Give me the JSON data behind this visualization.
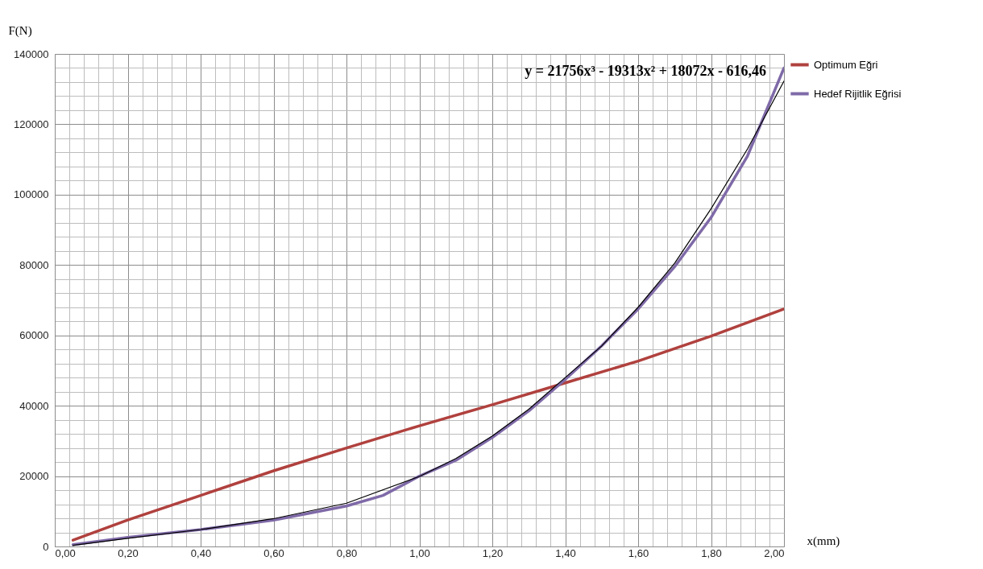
{
  "chart_data": {
    "type": "line",
    "xlabel": "x(mm)",
    "ylabel": "F(N)",
    "annotations": [
      "y = 21756x³ - 19313x² + 18072x - 616,46"
    ],
    "xlim": [
      0,
      2
    ],
    "ylim": [
      0,
      140000
    ],
    "xticks": [
      {
        "value": 0,
        "label": "0,00"
      },
      {
        "value": 0.04,
        "label": null
      },
      {
        "value": 0.08,
        "label": null
      },
      {
        "value": 0.12,
        "label": null
      },
      {
        "value": 0.16,
        "label": null
      },
      {
        "value": 0.2,
        "label": "0,20"
      },
      {
        "value": 0.24,
        "label": null
      },
      {
        "value": 0.28,
        "label": null
      },
      {
        "value": 0.32,
        "label": null
      },
      {
        "value": 0.36,
        "label": null
      },
      {
        "value": 0.4,
        "label": "0,40"
      },
      {
        "value": 0.44,
        "label": null
      },
      {
        "value": 0.48,
        "label": null
      },
      {
        "value": 0.52,
        "label": null
      },
      {
        "value": 0.56,
        "label": null
      },
      {
        "value": 0.6,
        "label": "0,60"
      },
      {
        "value": 0.64,
        "label": null
      },
      {
        "value": 0.68,
        "label": null
      },
      {
        "value": 0.72,
        "label": null
      },
      {
        "value": 0.76,
        "label": null
      },
      {
        "value": 0.8,
        "label": "0,80"
      },
      {
        "value": 0.84,
        "label": null
      },
      {
        "value": 0.88,
        "label": null
      },
      {
        "value": 0.92,
        "label": null
      },
      {
        "value": 0.96,
        "label": null
      },
      {
        "value": 1,
        "label": "1,00"
      },
      {
        "value": 1.04,
        "label": null
      },
      {
        "value": 1.08,
        "label": null
      },
      {
        "value": 1.12,
        "label": null
      },
      {
        "value": 1.16,
        "label": null
      },
      {
        "value": 1.2,
        "label": "1,20"
      },
      {
        "value": 1.24,
        "label": null
      },
      {
        "value": 1.28,
        "label": null
      },
      {
        "value": 1.32,
        "label": null
      },
      {
        "value": 1.36,
        "label": null
      },
      {
        "value": 1.4,
        "label": "1,40"
      },
      {
        "value": 1.44,
        "label": null
      },
      {
        "value": 1.48,
        "label": null
      },
      {
        "value": 1.52,
        "label": null
      },
      {
        "value": 1.56,
        "label": null
      },
      {
        "value": 1.6,
        "label": "1,60"
      },
      {
        "value": 1.64,
        "label": null
      },
      {
        "value": 1.68,
        "label": null
      },
      {
        "value": 1.72,
        "label": null
      },
      {
        "value": 1.76,
        "label": null
      },
      {
        "value": 1.8,
        "label": "1,80"
      },
      {
        "value": 1.84,
        "label": null
      },
      {
        "value": 1.88,
        "label": null
      },
      {
        "value": 1.92,
        "label": null
      },
      {
        "value": 1.96,
        "label": null
      },
      {
        "value": 2,
        "label": "2,00"
      }
    ],
    "yticks": [
      0,
      {
        "value": 4000,
        "label": null
      },
      {
        "value": 8000,
        "label": null
      },
      {
        "value": 12000,
        "label": null
      },
      {
        "value": 16000,
        "label": null
      },
      20000,
      {
        "value": 24000,
        "label": null
      },
      {
        "value": 28000,
        "label": null
      },
      {
        "value": 32000,
        "label": null
      },
      {
        "value": 36000,
        "label": null
      },
      40000,
      {
        "value": 44000,
        "label": null
      },
      {
        "value": 48000,
        "label": null
      },
      {
        "value": 52000,
        "label": null
      },
      {
        "value": 56000,
        "label": null
      },
      60000,
      {
        "value": 64000,
        "label": null
      },
      {
        "value": 68000,
        "label": null
      },
      {
        "value": 72000,
        "label": null
      },
      {
        "value": 76000,
        "label": null
      },
      80000,
      {
        "value": 84000,
        "label": null
      },
      {
        "value": 88000,
        "label": null
      },
      {
        "value": 92000,
        "label": null
      },
      {
        "value": 96000,
        "label": null
      },
      100000,
      {
        "value": 104000,
        "label": null
      },
      {
        "value": 108000,
        "label": null
      },
      {
        "value": 112000,
        "label": null
      },
      {
        "value": 116000,
        "label": null
      },
      120000,
      {
        "value": 124000,
        "label": null
      },
      {
        "value": 128000,
        "label": null
      },
      {
        "value": 132000,
        "label": null
      },
      {
        "value": 136000,
        "label": null
      },
      140000
    ],
    "grid": true,
    "legend": "right",
    "marker": "none",
    "line_style": "solid",
    "series": [
      {
        "name": "Optimum Eğri",
        "color": "#b0413e",
        "x": [
          0.05,
          0.2,
          0.4,
          0.6,
          0.8,
          1.0,
          1.2,
          1.4,
          1.6,
          1.8,
          2.0
        ],
        "values": [
          1800,
          7500,
          14500,
          21500,
          28000,
          34300,
          40300,
          46500,
          52700,
          59800,
          67500
        ]
      },
      {
        "name": "Hedef Rijitlik Eğrisi",
        "color": "#7f6aa8",
        "x": [
          0.05,
          0.2,
          0.4,
          0.6,
          0.8,
          0.9,
          1.0,
          1.1,
          1.2,
          1.3,
          1.4,
          1.5,
          1.6,
          1.7,
          1.8,
          1.9,
          2.0
        ],
        "values": [
          500,
          2600,
          4800,
          7500,
          11500,
          14500,
          20000,
          24500,
          31000,
          38500,
          47500,
          57000,
          67500,
          79500,
          93500,
          111000,
          136000
        ]
      },
      {
        "color": "#000000",
        "x": [
          0.05,
          0.2,
          0.4,
          0.6,
          0.8,
          1.0,
          1.1,
          1.2,
          1.3,
          1.4,
          1.5,
          1.6,
          1.7,
          1.8,
          1.9,
          2.0
        ],
        "values": [
          300,
          2300,
          4800,
          7900,
          12300,
          19900,
          25000,
          31400,
          39000,
          48000,
          57000,
          68000,
          80500,
          96000,
          113000,
          132300
        ]
      }
    ]
  }
}
